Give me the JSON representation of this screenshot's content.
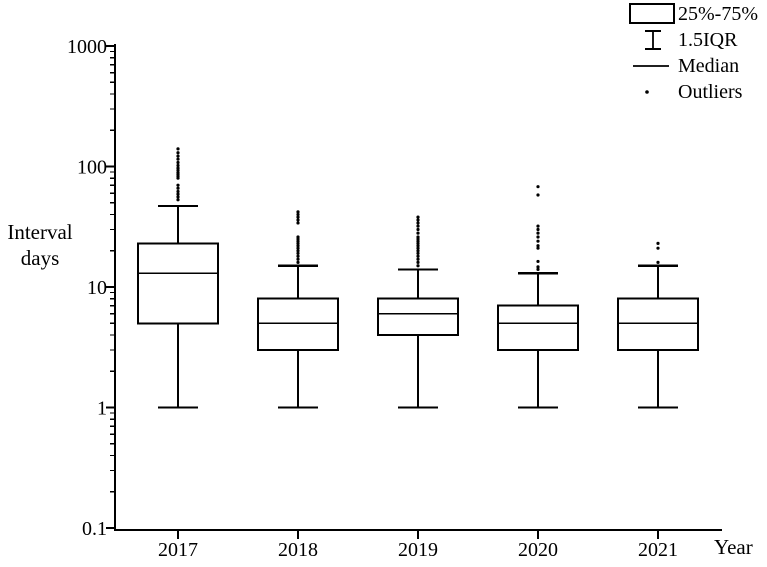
{
  "figure": {
    "background": "#ffffff",
    "ink_color": "#000000"
  },
  "legend": {
    "position": "top-right",
    "items": [
      {
        "icon": "box-swatch",
        "label": "25%-75%"
      },
      {
        "icon": "whisker-swatch",
        "label": "1.5IQR"
      },
      {
        "icon": "median-swatch",
        "label": "Median"
      },
      {
        "icon": "outliers-swatch",
        "label": "Outliers"
      }
    ]
  },
  "chart_data": {
    "type": "boxplot",
    "title": "",
    "xlabel": "Year",
    "ylabel": "Interval\ndays",
    "y_scale": "log",
    "ylim": [
      0.1,
      1000
    ],
    "grid": false,
    "y_ticks": [
      {
        "value": 1000,
        "label": "1000"
      },
      {
        "value": 100,
        "label": "100"
      },
      {
        "value": 10,
        "label": "10"
      },
      {
        "value": 1,
        "label": "1"
      },
      {
        "value": 0.1,
        "label": "0.1"
      }
    ],
    "categories": [
      "2017",
      "2018",
      "2019",
      "2020",
      "2021"
    ],
    "series": [
      {
        "category": "2017",
        "whisker_low": 1,
        "q1": 5,
        "median": 13,
        "q3": 23,
        "whisker_high": 47,
        "outliers": [
          140,
          130,
          122,
          115,
          108,
          102,
          97,
          93,
          89,
          86,
          83,
          80,
          70,
          66,
          62,
          59,
          56,
          53
        ]
      },
      {
        "category": "2018",
        "whisker_low": 1,
        "q1": 3,
        "median": 5,
        "q3": 8,
        "whisker_high": 15,
        "outliers": [
          42,
          40,
          38,
          36,
          34,
          26,
          25,
          24,
          23,
          22,
          21,
          20,
          19,
          18,
          17,
          16
        ]
      },
      {
        "category": "2019",
        "whisker_low": 1,
        "q1": 4,
        "median": 6,
        "q3": 8,
        "whisker_high": 14,
        "outliers": [
          38,
          36,
          34,
          32,
          30,
          28,
          26,
          25,
          24,
          23,
          22,
          21,
          20,
          19,
          18,
          17,
          16,
          15
        ]
      },
      {
        "category": "2020",
        "whisker_low": 1,
        "q1": 3,
        "median": 5,
        "q3": 7,
        "whisker_high": 13,
        "outliers": [
          68,
          58,
          32,
          30,
          28,
          26,
          24,
          22,
          21,
          16.3,
          14.7,
          14
        ]
      },
      {
        "category": "2021",
        "whisker_low": 1,
        "q1": 3,
        "median": 5,
        "q3": 8,
        "whisker_high": 15,
        "outliers": [
          23,
          21,
          16
        ]
      }
    ]
  }
}
